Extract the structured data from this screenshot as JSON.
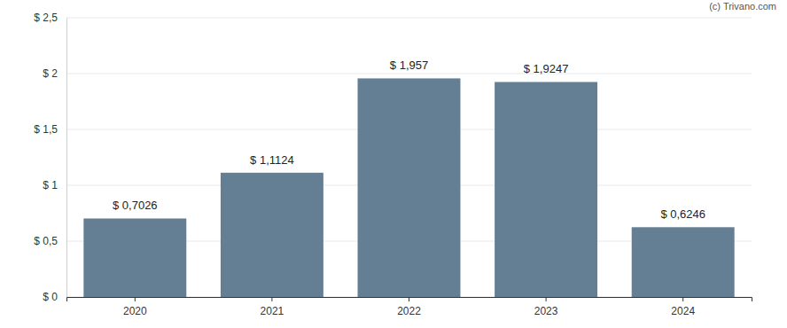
{
  "chart_data": {
    "type": "bar",
    "annotations": [
      "(c) Trivano.com"
    ],
    "categories": [
      "2020",
      "2021",
      "2022",
      "2023",
      "2024"
    ],
    "values": [
      0.7026,
      1.1124,
      1.957,
      1.9247,
      0.6246
    ],
    "value_labels": [
      "$ 0,7026",
      "$ 1,1124",
      "$ 1,957",
      "$ 1,9247",
      "$ 0,6246"
    ],
    "data_labels": true,
    "color": "#647f93",
    "ylim": [
      0,
      2.5
    ],
    "yticks": [
      {
        "value": 0,
        "label": "$ 0"
      },
      {
        "value": 0.5,
        "label": "$ 0,5"
      },
      {
        "value": 1,
        "label": "$ 1"
      },
      {
        "value": 1.5,
        "label": "$ 1,5"
      },
      {
        "value": 2,
        "label": "$ 2"
      },
      {
        "value": 2.5,
        "label": "$ 2,5"
      }
    ],
    "grid": true
  }
}
